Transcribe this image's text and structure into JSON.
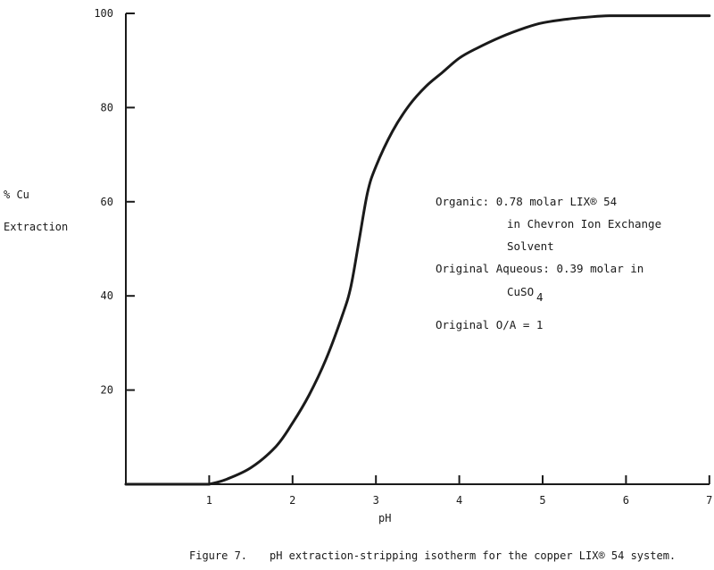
{
  "chart_data": {
    "type": "line",
    "title": "",
    "caption": {
      "label": "Figure 7.",
      "text": "pH extraction-stripping isotherm for the copper LIX® 54 system."
    },
    "xlabel": "pH",
    "ylabel_line1": "% Cu",
    "ylabel_line2": "Extraction",
    "xlim": [
      0,
      7
    ],
    "ylim": [
      0,
      100
    ],
    "x_ticks": [
      1,
      2,
      3,
      4,
      5,
      6,
      7
    ],
    "x_tick_labels": [
      "1",
      "2",
      "3",
      "4",
      "5",
      "6",
      "7"
    ],
    "y_ticks": [
      20,
      40,
      60,
      80,
      100
    ],
    "y_tick_labels": [
      "20",
      "40",
      "60",
      "80",
      "100"
    ],
    "grid": false,
    "series": [
      {
        "x": [
          1.0,
          1.2,
          1.5,
          1.8,
          2.0,
          2.2,
          2.4,
          2.6,
          2.7,
          2.8,
          2.9,
          3.0,
          3.2,
          3.4,
          3.6,
          3.8,
          4.0,
          4.2,
          4.5,
          4.8,
          5.0,
          5.3,
          5.6,
          5.8,
          6.0,
          6.5,
          7.0
        ],
        "y": [
          0.0,
          1.0,
          3.5,
          8.0,
          13.0,
          19.0,
          26.5,
          36.0,
          42.0,
          52.0,
          62.0,
          67.5,
          75.0,
          80.5,
          84.5,
          87.5,
          90.5,
          92.5,
          95.0,
          97.0,
          98.0,
          98.8,
          99.3,
          99.5,
          99.5,
          99.5,
          99.5
        ]
      }
    ],
    "annotations": [
      "Organic:  0.78 molar LIX® 54",
      "in  Chevron Ion Exchange",
      "Solvent",
      "Original Aqueous: 0.39 molar in",
      "CuSO",
      "4",
      "Original O/A = 1"
    ]
  }
}
